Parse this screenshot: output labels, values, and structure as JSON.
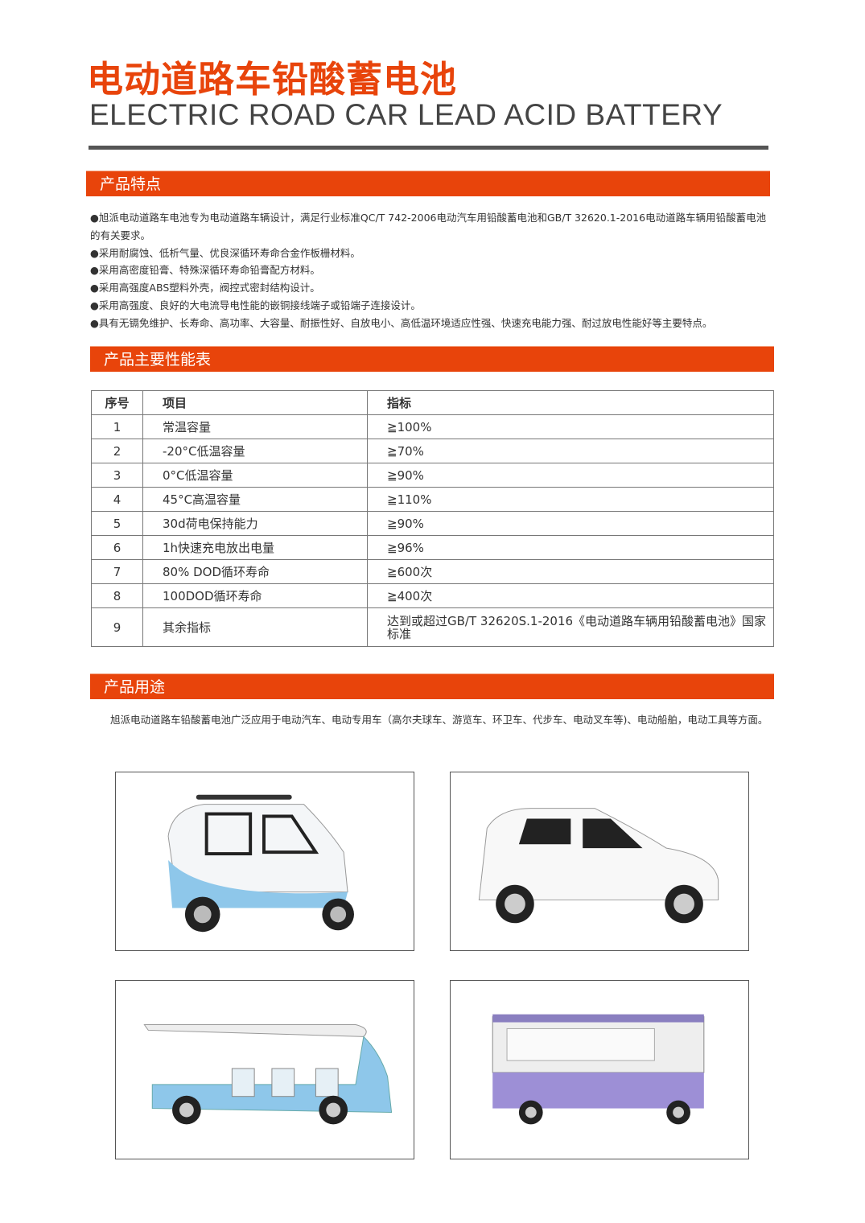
{
  "header": {
    "title": "电动道路车铅酸蓄电池",
    "subtitle": "ELECTRIC ROAD CAR LEAD ACID BATTERY"
  },
  "features": {
    "heading": "产品特点",
    "items": [
      "●旭派电动道路车电池专为电动道路车辆设计，满足行业标准QC/T 742-2006电动汽车用铅酸蓄电池和GB/T 32620.1-2016电动道路车辆用铅酸蓄电池的有关要求。",
      "●采用耐腐蚀、低析气量、优良深循环寿命合金作板栅材料。",
      "●采用高密度铅膏、特殊深循环寿命铅膏配方材料。",
      "●采用高强度ABS塑料外壳，阀控式密封结构设计。",
      "●采用高强度、良好的大电流导电性能的嵌铜接线端子或铅端子连接设计。",
      "●具有无镉免维护、长寿命、高功率、大容量、耐振性好、自放电小、高低温环境适应性强、快速充电能力强、耐过放电性能好等主要特点。"
    ]
  },
  "performance": {
    "heading": "产品主要性能表",
    "columns": [
      "序号",
      "项目",
      "指标"
    ],
    "rows": [
      [
        "1",
        "常温容量",
        "≧100%"
      ],
      [
        "2",
        "-20°C低温容量",
        "≧70%"
      ],
      [
        "3",
        "0°C低温容量",
        "≧90%"
      ],
      [
        "4",
        "45°C高温容量",
        "≧110%"
      ],
      [
        "5",
        "30d荷电保持能力",
        "≧90%"
      ],
      [
        "6",
        "1h快速充电放出电量",
        "≧96%"
      ],
      [
        "7",
        "80% DOD循环寿命",
        "≧600次"
      ],
      [
        "8",
        "100DOD循环寿命",
        "≧400次"
      ],
      [
        "9",
        "其余指标",
        "达到或超过GB/T 32620S.1-2016《电动道路车辆用铅酸蓄电池》国家标准"
      ]
    ]
  },
  "usage": {
    "heading": "产品用途",
    "text": "旭派电动道路车铅酸蓄电池广泛应用于电动汽车、电动专用车（高尔夫球车、游览车、环卫车、代步车、电动叉车等)、电动船舶，电动工具等方面。"
  },
  "colors": {
    "accent": "#e8440b",
    "rule": "#555555"
  }
}
